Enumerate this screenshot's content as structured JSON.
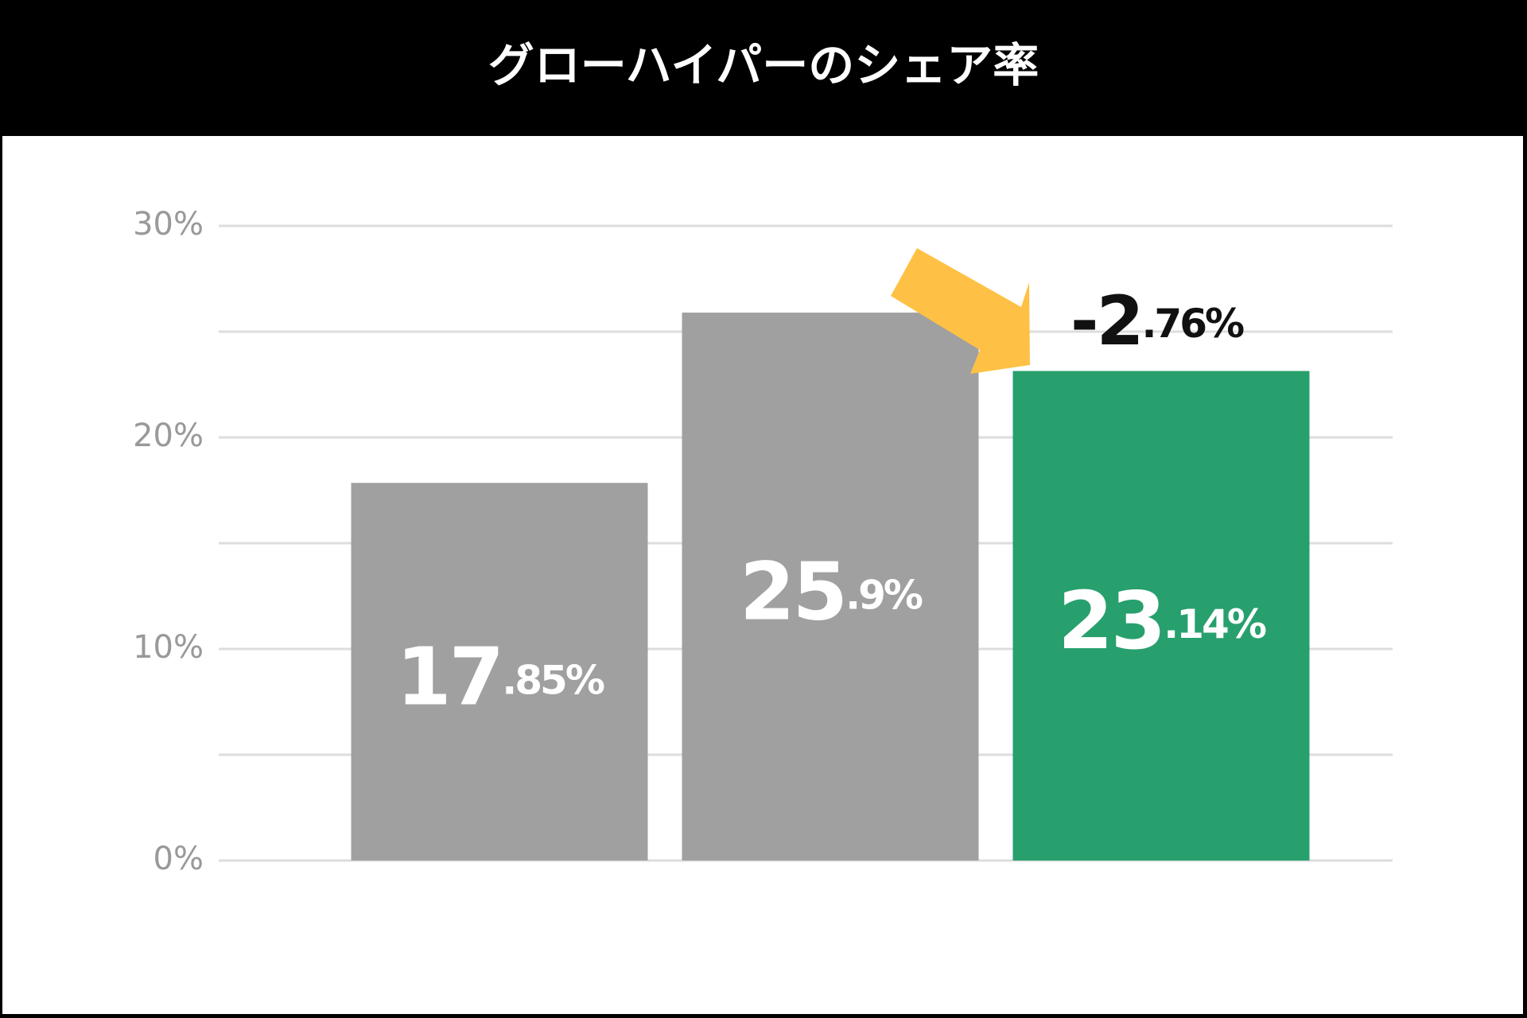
{
  "chart_data": {
    "type": "bar",
    "title": "グローハイパーのシェア率",
    "categories": [
      null,
      null,
      null
    ],
    "values": [
      17.85,
      25.9,
      23.14
    ],
    "value_labels": [
      "17.85%",
      "25.9%",
      "23.14%"
    ],
    "colors": [
      "#a0a0a0",
      "#a0a0a0",
      "#27a06d"
    ],
    "ylim": [
      0,
      30
    ],
    "yticks": [
      {
        "value": 0,
        "label": "0%"
      },
      {
        "value": 10,
        "label": "10%"
      },
      {
        "value": 20,
        "label": "20%"
      },
      {
        "value": 30,
        "label": "30%"
      }
    ],
    "minor_yticks": [
      5,
      15,
      25
    ],
    "grid": true,
    "annotation": "-2.76%"
  }
}
